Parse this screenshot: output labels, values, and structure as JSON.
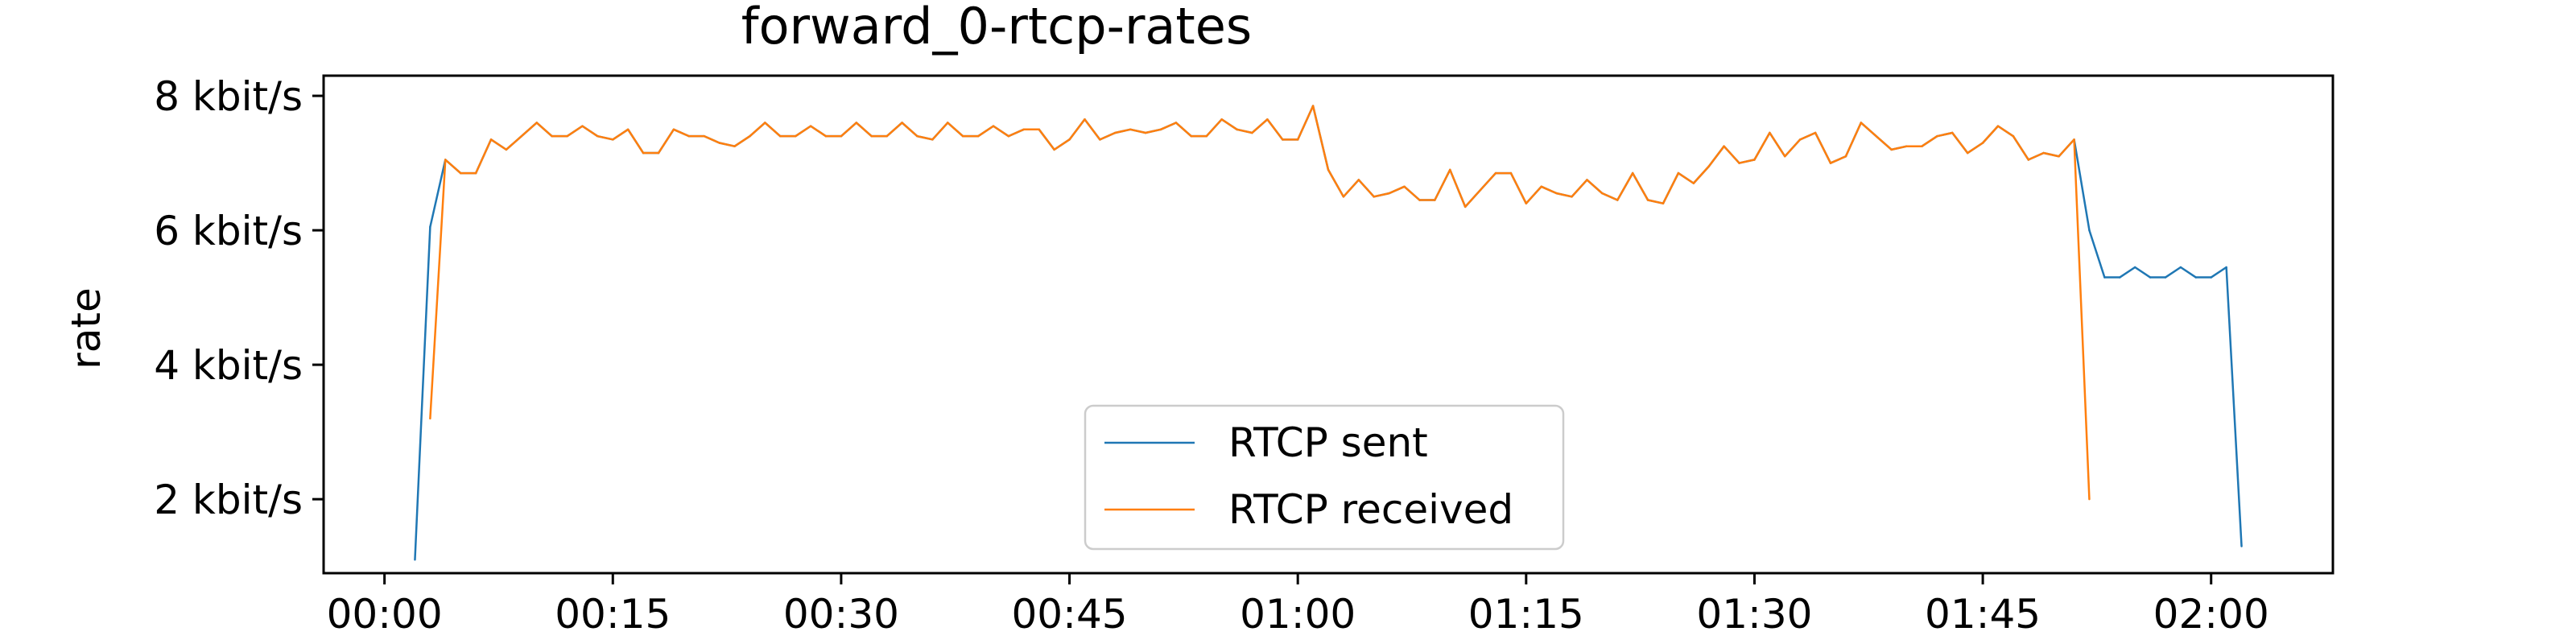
{
  "chart_data": {
    "type": "line",
    "title": "forward_0-rtcp-rates",
    "xlabel": "",
    "ylabel": "rate",
    "x_unit": "seconds since 00:00",
    "xlim": [
      -4,
      128
    ],
    "ylim": [
      0.9,
      8.3
    ],
    "x_ticks": [
      {
        "v": 0,
        "label": "00:00"
      },
      {
        "v": 15,
        "label": "00:15"
      },
      {
        "v": 30,
        "label": "00:30"
      },
      {
        "v": 45,
        "label": "00:45"
      },
      {
        "v": 60,
        "label": "01:00"
      },
      {
        "v": 75,
        "label": "01:15"
      },
      {
        "v": 90,
        "label": "01:30"
      },
      {
        "v": 105,
        "label": "01:45"
      },
      {
        "v": 120,
        "label": "02:00"
      }
    ],
    "y_ticks": [
      {
        "v": 2,
        "label": "2 kbit/s"
      },
      {
        "v": 4,
        "label": "4 kbit/s"
      },
      {
        "v": 6,
        "label": "6 kbit/s"
      },
      {
        "v": 8,
        "label": "8 kbit/s"
      }
    ],
    "grid": false,
    "legend_position": "lower-center",
    "series": [
      {
        "name": "RTCP sent",
        "color": "#1f77b4",
        "x": [
          2,
          3,
          4,
          5,
          6,
          7,
          8,
          9,
          10,
          11,
          12,
          13,
          14,
          15,
          16,
          17,
          18,
          19,
          20,
          21,
          22,
          23,
          24,
          25,
          26,
          27,
          28,
          29,
          30,
          31,
          32,
          33,
          34,
          35,
          36,
          37,
          38,
          39,
          40,
          41,
          42,
          43,
          44,
          45,
          46,
          47,
          48,
          49,
          50,
          51,
          52,
          53,
          54,
          55,
          56,
          57,
          58,
          59,
          60,
          61,
          62,
          63,
          64,
          65,
          66,
          67,
          68,
          69,
          70,
          71,
          72,
          73,
          74,
          75,
          76,
          77,
          78,
          79,
          80,
          81,
          82,
          83,
          84,
          85,
          86,
          87,
          88,
          89,
          90,
          91,
          92,
          93,
          94,
          95,
          96,
          97,
          98,
          99,
          100,
          101,
          102,
          103,
          104,
          105,
          106,
          107,
          108,
          109,
          110,
          111,
          112,
          113,
          114,
          115,
          116,
          117,
          118,
          119,
          120,
          121,
          122
        ],
        "y": [
          1.1,
          6.05,
          7.05,
          6.85,
          6.85,
          7.35,
          7.2,
          7.4,
          7.6,
          7.4,
          7.4,
          7.55,
          7.4,
          7.35,
          7.5,
          7.15,
          7.15,
          7.5,
          7.4,
          7.4,
          7.3,
          7.25,
          7.4,
          7.6,
          7.4,
          7.4,
          7.55,
          7.4,
          7.4,
          7.6,
          7.4,
          7.4,
          7.6,
          7.4,
          7.35,
          7.6,
          7.4,
          7.4,
          7.55,
          7.4,
          7.5,
          7.5,
          7.2,
          7.35,
          7.65,
          7.35,
          7.45,
          7.5,
          7.45,
          7.5,
          7.6,
          7.4,
          7.4,
          7.65,
          7.5,
          7.45,
          7.65,
          7.35,
          7.35,
          7.85,
          6.9,
          6.5,
          6.75,
          6.5,
          6.55,
          6.65,
          6.45,
          6.45,
          6.9,
          6.35,
          6.6,
          6.85,
          6.85,
          6.4,
          6.65,
          6.55,
          6.5,
          6.75,
          6.55,
          6.45,
          6.85,
          6.45,
          6.4,
          6.85,
          6.7,
          6.95,
          7.25,
          7.0,
          7.05,
          7.45,
          7.1,
          7.35,
          7.45,
          7.0,
          7.1,
          7.6,
          7.4,
          7.2,
          7.25,
          7.25,
          7.4,
          7.45,
          7.15,
          7.3,
          7.55,
          7.4,
          7.05,
          7.15,
          7.1,
          7.35,
          6.0,
          5.3,
          5.3,
          5.45,
          5.3,
          5.3,
          5.45,
          5.3,
          5.3,
          5.45,
          1.3
        ]
      },
      {
        "name": "RTCP received",
        "color": "#ff7f0e",
        "x": [
          3,
          4,
          5,
          6,
          7,
          8,
          9,
          10,
          11,
          12,
          13,
          14,
          15,
          16,
          17,
          18,
          19,
          20,
          21,
          22,
          23,
          24,
          25,
          26,
          27,
          28,
          29,
          30,
          31,
          32,
          33,
          34,
          35,
          36,
          37,
          38,
          39,
          40,
          41,
          42,
          43,
          44,
          45,
          46,
          47,
          48,
          49,
          50,
          51,
          52,
          53,
          54,
          55,
          56,
          57,
          58,
          59,
          60,
          61,
          62,
          63,
          64,
          65,
          66,
          67,
          68,
          69,
          70,
          71,
          72,
          73,
          74,
          75,
          76,
          77,
          78,
          79,
          80,
          81,
          82,
          83,
          84,
          85,
          86,
          87,
          88,
          89,
          90,
          91,
          92,
          93,
          94,
          95,
          96,
          97,
          98,
          99,
          100,
          101,
          102,
          103,
          104,
          105,
          106,
          107,
          108,
          109,
          110,
          111,
          112
        ],
        "y": [
          3.2,
          7.05,
          6.85,
          6.85,
          7.35,
          7.2,
          7.4,
          7.6,
          7.4,
          7.4,
          7.55,
          7.4,
          7.35,
          7.5,
          7.15,
          7.15,
          7.5,
          7.4,
          7.4,
          7.3,
          7.25,
          7.4,
          7.6,
          7.4,
          7.4,
          7.55,
          7.4,
          7.4,
          7.6,
          7.4,
          7.4,
          7.6,
          7.4,
          7.35,
          7.6,
          7.4,
          7.4,
          7.55,
          7.4,
          7.5,
          7.5,
          7.2,
          7.35,
          7.65,
          7.35,
          7.45,
          7.5,
          7.45,
          7.5,
          7.6,
          7.4,
          7.4,
          7.65,
          7.5,
          7.45,
          7.65,
          7.35,
          7.35,
          7.85,
          6.9,
          6.5,
          6.75,
          6.5,
          6.55,
          6.65,
          6.45,
          6.45,
          6.9,
          6.35,
          6.6,
          6.85,
          6.85,
          6.4,
          6.65,
          6.55,
          6.5,
          6.75,
          6.55,
          6.45,
          6.85,
          6.45,
          6.4,
          6.85,
          6.7,
          6.95,
          7.25,
          7.0,
          7.05,
          7.45,
          7.1,
          7.35,
          7.45,
          7.0,
          7.1,
          7.6,
          7.4,
          7.2,
          7.25,
          7.25,
          7.4,
          7.45,
          7.15,
          7.3,
          7.55,
          7.4,
          7.05,
          7.15,
          7.1,
          7.35,
          2.0
        ]
      }
    ]
  }
}
